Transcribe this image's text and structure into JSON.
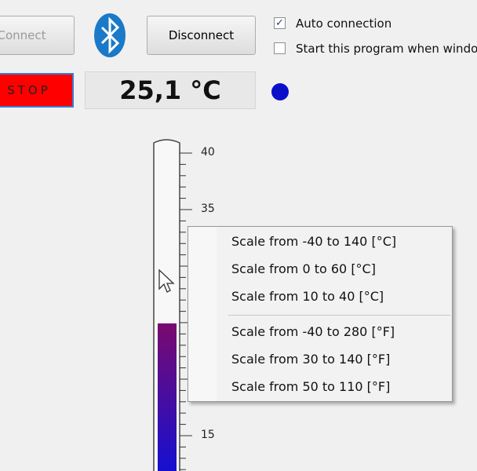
{
  "buttons": {
    "connect": "Connect",
    "disconnect": "Disconnect",
    "stop": "STOP"
  },
  "checkboxes": [
    {
      "label": "Auto connection",
      "checked": true
    },
    {
      "label": "Start this program when windo",
      "checked": false
    }
  ],
  "temperature": "25,1 °C",
  "thermometer": {
    "tick_labels": [
      "40",
      "35",
      "15"
    ]
  },
  "menu": {
    "items": [
      "Scale from  -40 to 140 [°C]",
      "Scale from 0 to 60 [°C]",
      "Scale from 10 to 40 [°C]",
      "Scale from  -40 to 280 [°F]",
      "Scale from  30 to 140 [°F]",
      "Scale from  50 to 110 [°F]"
    ]
  }
}
